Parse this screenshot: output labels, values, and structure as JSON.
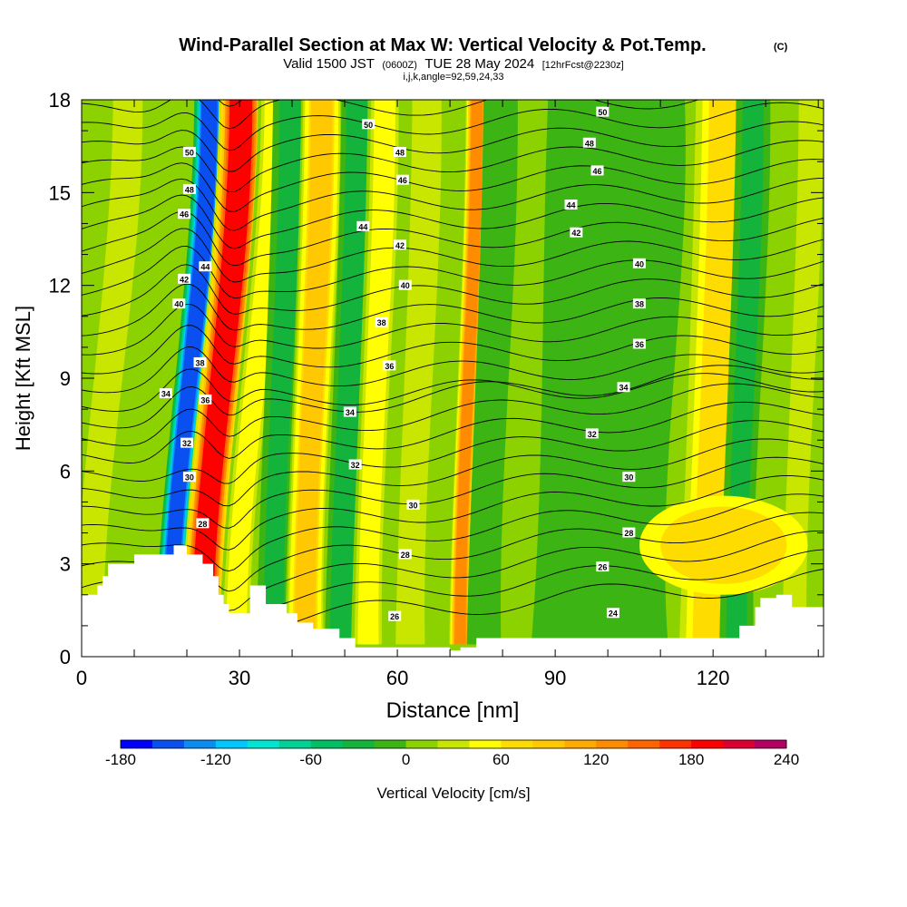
{
  "chart_data": {
    "type": "heatmap",
    "title": "Wind-Parallel Section at Max W: Vertical Velocity & Pot.Temp.",
    "title_mark": "(C)",
    "subtitle_main": "Valid 1500 JST",
    "subtitle_utc": "(0600Z)",
    "subtitle_date": "TUE 28 May 2024",
    "subtitle_fcst": "[12hrFcst@2230z]",
    "subtitle_ijk": "i,j,k,angle=92,59,24,33",
    "xlabel": "Distance [nm]",
    "ylabel": "Height [Kft MSL]",
    "xlim": [
      0,
      141
    ],
    "ylim": [
      0,
      18
    ],
    "x_ticks": [
      0,
      30,
      60,
      90,
      120
    ],
    "x_tick_labels": [
      "0",
      "30",
      "60",
      "90",
      "120"
    ],
    "y_ticks": [
      0,
      3,
      6,
      9,
      12,
      15,
      18
    ],
    "y_tick_labels": [
      "0",
      "3",
      "6",
      "9",
      "12",
      "15",
      "18"
    ],
    "colorbar": {
      "label": "Vertical Velocity [cm/s]",
      "min": -180,
      "max": 240,
      "step": 20,
      "tick_values": [
        -180,
        -120,
        -60,
        0,
        60,
        120,
        180,
        240
      ],
      "tick_labels": [
        "-180",
        "-120",
        "-60",
        "0",
        "60",
        "120",
        "180",
        "240"
      ],
      "colors": [
        "#0000ff",
        "#0a50f0",
        "#0a8cf0",
        "#00c8ff",
        "#00e6d2",
        "#00d296",
        "#00be64",
        "#14b43c",
        "#3cb414",
        "#8cd200",
        "#c8e600",
        "#ffff00",
        "#ffdc00",
        "#ffc800",
        "#ffaa00",
        "#ff8c00",
        "#ff6400",
        "#ff3200",
        "#ff0000",
        "#dc0032",
        "#b40064",
        "#8c0082",
        "#640096"
      ]
    },
    "vertical_velocity_bands": [
      {
        "x": 5,
        "w": 3.5,
        "value": 25
      },
      {
        "x": 12,
        "w": 2.5,
        "value": 15
      },
      {
        "x": 20.5,
        "w": 2.2,
        "value": -160
      },
      {
        "x": 26.5,
        "w": 3.2,
        "value": 185
      },
      {
        "x": 33,
        "w": 2.5,
        "value": 50
      },
      {
        "x": 38,
        "w": 2.5,
        "value": -30
      },
      {
        "x": 44,
        "w": 3.0,
        "value": 80
      },
      {
        "x": 51,
        "w": 2.5,
        "value": -40
      },
      {
        "x": 56,
        "w": 2.5,
        "value": 55
      },
      {
        "x": 64,
        "w": 3.0,
        "value": 30
      },
      {
        "x": 73.5,
        "w": 1.6,
        "value": 130
      },
      {
        "x": 78,
        "w": 2.5,
        "value": -15
      },
      {
        "x": 100,
        "w": 10,
        "value": -8
      },
      {
        "x": 121,
        "w": 5,
        "value": 70
      },
      {
        "x": 126,
        "w": 2.5,
        "value": -25
      },
      {
        "x": 137,
        "w": 2.5,
        "value": 30
      }
    ],
    "terrain_profile": [
      [
        0,
        2.0
      ],
      [
        2,
        2.0
      ],
      [
        3,
        2.3
      ],
      [
        4,
        2.6
      ],
      [
        5,
        3.0
      ],
      [
        8,
        3.0
      ],
      [
        10,
        3.3
      ],
      [
        17,
        3.3
      ],
      [
        17.5,
        3.6
      ],
      [
        19,
        3.6
      ],
      [
        20,
        3.3
      ],
      [
        22,
        3.3
      ],
      [
        23,
        3.0
      ],
      [
        25,
        2.6
      ],
      [
        26,
        2.0
      ],
      [
        27,
        1.7
      ],
      [
        28,
        1.4
      ],
      [
        31,
        1.4
      ],
      [
        32,
        2.3
      ],
      [
        34,
        2.3
      ],
      [
        35,
        1.7
      ],
      [
        37,
        1.7
      ],
      [
        39,
        1.4
      ],
      [
        41,
        1.1
      ],
      [
        44,
        0.9
      ],
      [
        47,
        0.9
      ],
      [
        49,
        0.6
      ],
      [
        52,
        0.3
      ],
      [
        69,
        0.3
      ],
      [
        70,
        0.2
      ],
      [
        72,
        0.3
      ],
      [
        74,
        0.3
      ],
      [
        75,
        0.6
      ],
      [
        97,
        0.6
      ],
      [
        98,
        0.6
      ],
      [
        110,
        0.6
      ],
      [
        116,
        0.6
      ],
      [
        118,
        0.6
      ],
      [
        122,
        0.6
      ],
      [
        125,
        1.0
      ],
      [
        128,
        1.6
      ],
      [
        129,
        1.9
      ],
      [
        130,
        1.9
      ],
      [
        132,
        2.0
      ],
      [
        135,
        1.6
      ],
      [
        141,
        1.6
      ]
    ],
    "theta_contour_labels": [
      {
        "text": "50",
        "x": 20.5,
        "y": 16.3
      },
      {
        "text": "48",
        "x": 20.5,
        "y": 15.1
      },
      {
        "text": "46",
        "x": 19.5,
        "y": 14.3
      },
      {
        "text": "44",
        "x": 23.5,
        "y": 12.6
      },
      {
        "text": "42",
        "x": 19.5,
        "y": 12.2
      },
      {
        "text": "40",
        "x": 18.5,
        "y": 11.4
      },
      {
        "text": "38",
        "x": 22.5,
        "y": 9.5
      },
      {
        "text": "34",
        "x": 16,
        "y": 8.5
      },
      {
        "text": "36",
        "x": 23.5,
        "y": 8.3
      },
      {
        "text": "32",
        "x": 20,
        "y": 6.9
      },
      {
        "text": "30",
        "x": 20.5,
        "y": 5.8
      },
      {
        "text": "28",
        "x": 23,
        "y": 4.3
      },
      {
        "text": "50",
        "x": 54.5,
        "y": 17.2
      },
      {
        "text": "48",
        "x": 60.5,
        "y": 16.3
      },
      {
        "text": "46",
        "x": 61,
        "y": 15.4
      },
      {
        "text": "44",
        "x": 53.5,
        "y": 13.9
      },
      {
        "text": "42",
        "x": 60.5,
        "y": 13.3
      },
      {
        "text": "40",
        "x": 61.5,
        "y": 12.0
      },
      {
        "text": "38",
        "x": 57,
        "y": 10.8
      },
      {
        "text": "36",
        "x": 58.5,
        "y": 9.4
      },
      {
        "text": "34",
        "x": 51,
        "y": 7.9
      },
      {
        "text": "32",
        "x": 52,
        "y": 6.2
      },
      {
        "text": "30",
        "x": 63,
        "y": 4.9
      },
      {
        "text": "28",
        "x": 61.5,
        "y": 3.3
      },
      {
        "text": "26",
        "x": 59.5,
        "y": 1.3
      },
      {
        "text": "50",
        "x": 99,
        "y": 17.6
      },
      {
        "text": "48",
        "x": 96.5,
        "y": 16.6
      },
      {
        "text": "46",
        "x": 98,
        "y": 15.7
      },
      {
        "text": "44",
        "x": 93,
        "y": 14.6
      },
      {
        "text": "42",
        "x": 94,
        "y": 13.7
      },
      {
        "text": "40",
        "x": 106,
        "y": 12.7
      },
      {
        "text": "38",
        "x": 106,
        "y": 11.4
      },
      {
        "text": "36",
        "x": 106,
        "y": 10.1
      },
      {
        "text": "34",
        "x": 103,
        "y": 8.7
      },
      {
        "text": "32",
        "x": 97,
        "y": 7.2
      },
      {
        "text": "30",
        "x": 104,
        "y": 5.8
      },
      {
        "text": "28",
        "x": 104,
        "y": 4.0
      },
      {
        "text": "26",
        "x": 99,
        "y": 2.9
      },
      {
        "text": "24",
        "x": 101,
        "y": 1.4
      }
    ]
  }
}
